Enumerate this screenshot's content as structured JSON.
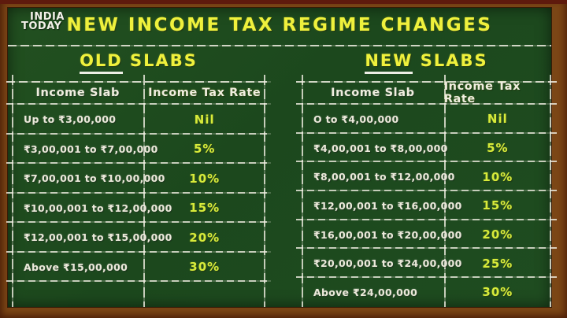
{
  "brand": {
    "line1": "INDIA",
    "line2": "TODAY"
  },
  "header": {
    "title": "NEW INCOME TAX REGIME CHANGES"
  },
  "colors": {
    "frame_brown": "#7b4616",
    "frame_top_red": "#5e1a0d",
    "board_green": "#1d4a1e",
    "accent_yellow": "#eff13c",
    "rate_yellow_green": "#d7eb3a",
    "chalk_white": "#ebe9da"
  },
  "chart_data": [
    {
      "type": "table",
      "title_first": "OLD",
      "title_rest": "SLABS",
      "columns": [
        "Income Slab",
        "Income Tax Rate"
      ],
      "rows": [
        [
          "Up to ₹3,00,000",
          "Nil"
        ],
        [
          "₹3,00,001 to ₹7,00,000",
          "5%"
        ],
        [
          "₹7,00,001 to ₹10,00,000",
          "10%"
        ],
        [
          "₹10,00,001 to ₹12,00,000",
          "15%"
        ],
        [
          "₹12,00,001 to ₹15,00,000",
          "20%"
        ],
        [
          "Above ₹15,00,000",
          "30%"
        ]
      ]
    },
    {
      "type": "table",
      "title_first": "NEW",
      "title_rest": "SLABS",
      "columns": [
        "Income Slab",
        "Income Tax Rate"
      ],
      "rows": [
        [
          "O to ₹4,00,000",
          "Nil"
        ],
        [
          "₹4,00,001 to ₹8,00,000",
          "5%"
        ],
        [
          "₹8,00,001 to ₹12,00,000",
          "10%"
        ],
        [
          "₹12,00,001 to ₹16,00,000",
          "15%"
        ],
        [
          "₹16,00,001 to ₹20,00,000",
          "20%"
        ],
        [
          "₹20,00,001 to ₹24,00,000",
          "25%"
        ],
        [
          "Above ₹24,00,000",
          "30%"
        ]
      ]
    }
  ]
}
